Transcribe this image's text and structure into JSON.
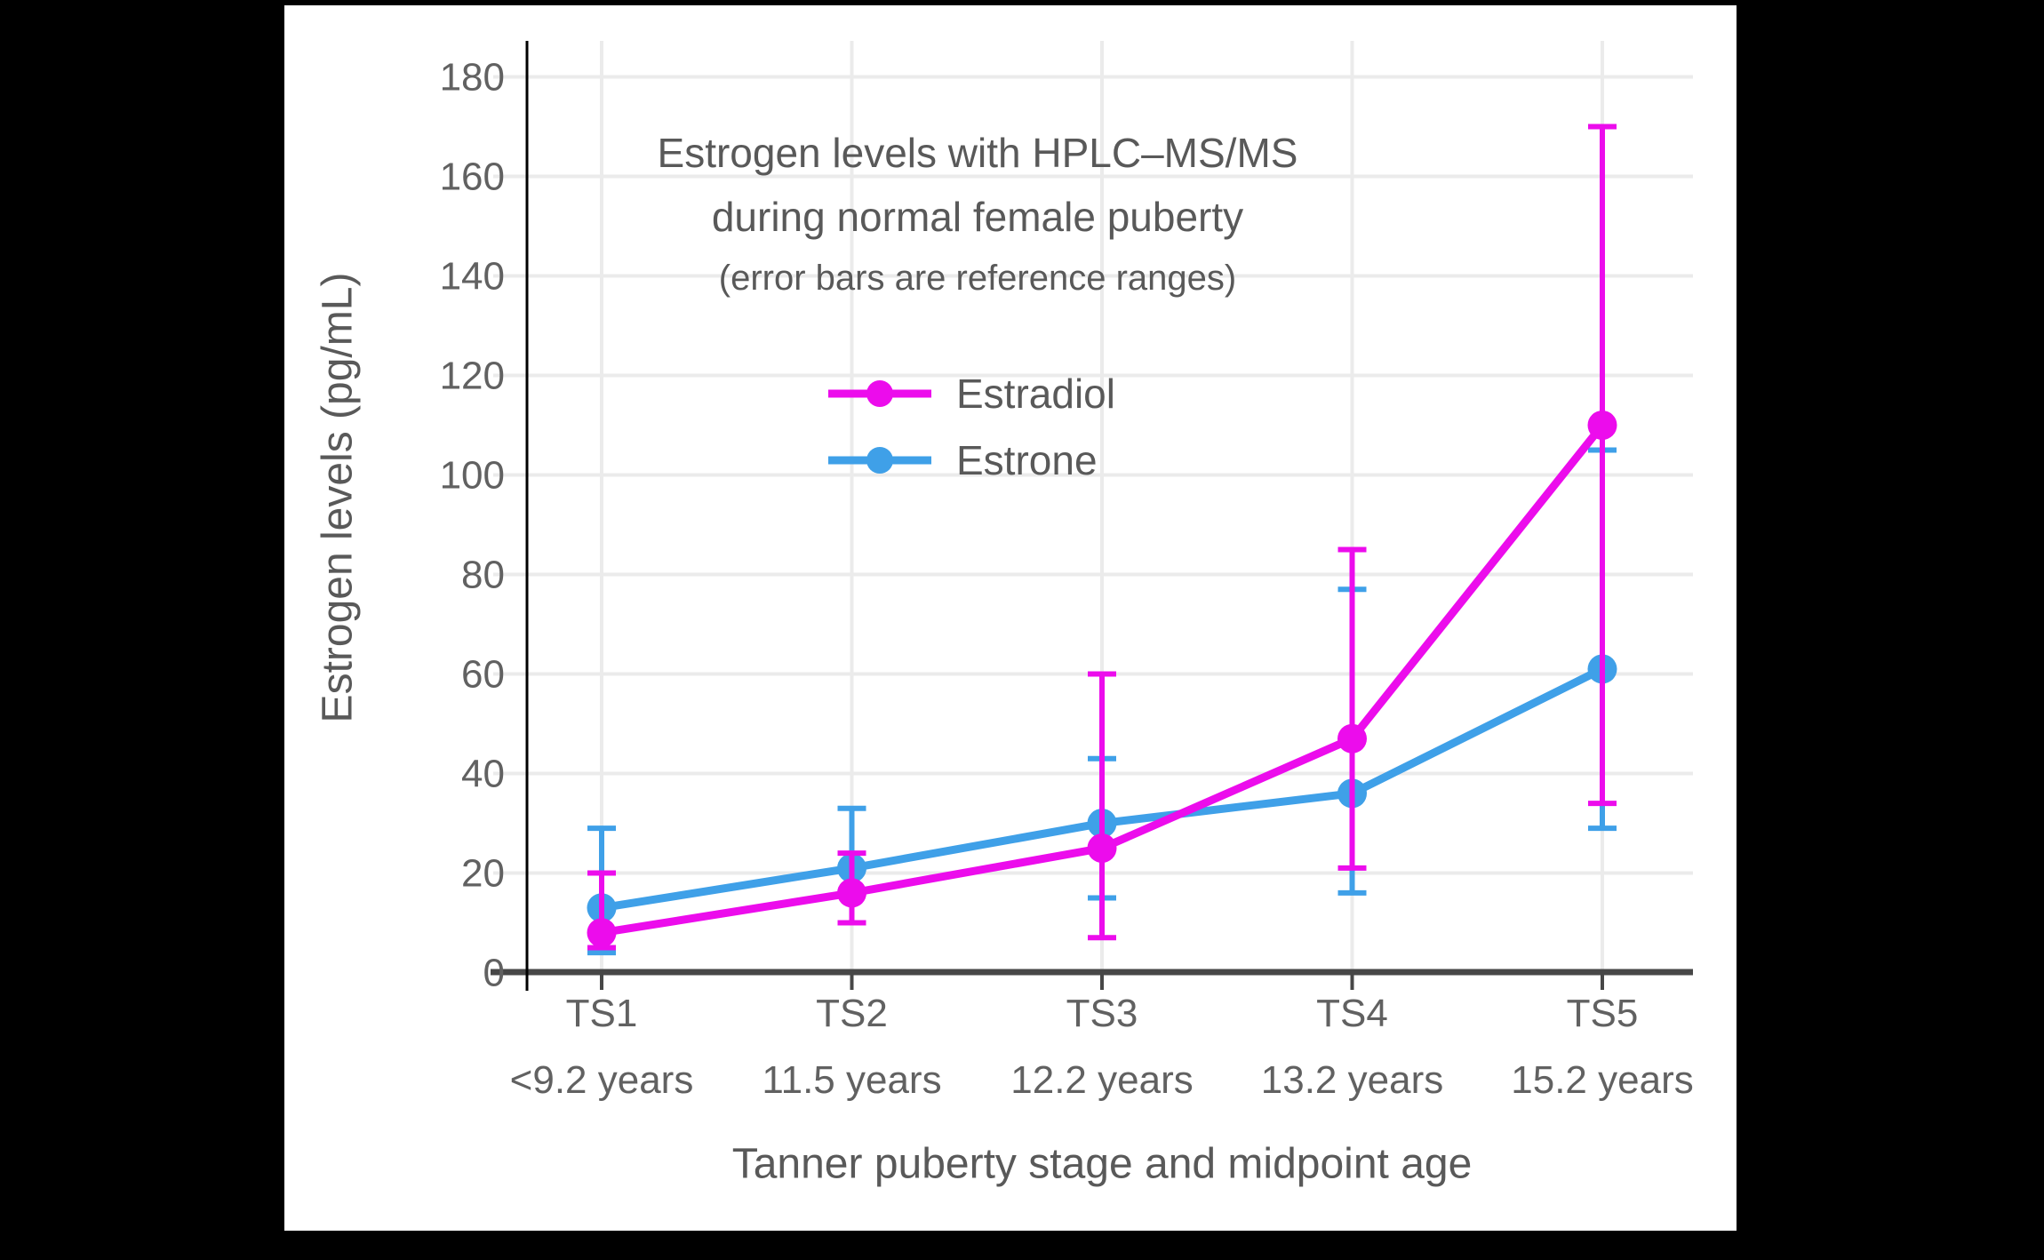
{
  "frame": {
    "background": "#000000",
    "card_background": "#ffffff"
  },
  "chart_data": {
    "type": "line",
    "title_line1": "Estrogen levels with HPLC–MS/MS",
    "title_line2": "during normal female puberty",
    "subtitle": "(error bars are reference ranges)",
    "xlabel": "Tanner puberty stage and midpoint age",
    "ylabel": "Estrogen levels (pg/mL)",
    "categories": [
      "TS1",
      "TS2",
      "TS3",
      "TS4",
      "TS5"
    ],
    "category_ages": [
      "<9.2 years",
      "11.5 years",
      "12.2 years",
      "13.2 years",
      "15.2 years"
    ],
    "ylim": [
      0,
      180
    ],
    "yticks": [
      0,
      20,
      40,
      60,
      80,
      100,
      120,
      140,
      160,
      180
    ],
    "grid": true,
    "legend_position": "upper-center-inside",
    "error_bar_meaning": "reference ranges",
    "series": [
      {
        "name": "Estradiol",
        "color": "#EC0CEC",
        "values": [
          8,
          16,
          25,
          47,
          110
        ],
        "error_low": [
          5,
          10,
          7,
          21,
          34
        ],
        "error_high": [
          20,
          24,
          60,
          85,
          170
        ]
      },
      {
        "name": "Estrone",
        "color": "#3FA0E8",
        "values": [
          13,
          21,
          30,
          36,
          61
        ],
        "error_low": [
          4,
          10,
          15,
          16,
          29
        ],
        "error_high": [
          29,
          33,
          43,
          77,
          105
        ]
      }
    ],
    "colors": {
      "text": "#595959",
      "tick_text": "#616161",
      "grid": "#EBEBEB",
      "x_axis": "#474747",
      "y_axis": "#000000"
    }
  }
}
